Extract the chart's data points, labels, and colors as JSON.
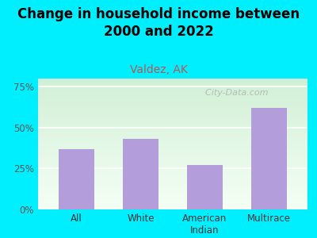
{
  "title": "Change in household income between\n2000 and 2022",
  "subtitle": "Valdez, AK",
  "categories": [
    "All",
    "White",
    "American\nIndian",
    "Multirace"
  ],
  "values": [
    37,
    43,
    27,
    62
  ],
  "bar_color": "#b39ddb",
  "yticks": [
    0,
    25,
    50,
    75
  ],
  "ytick_labels": [
    "0%",
    "25%",
    "50%",
    "75%"
  ],
  "ylim": [
    0,
    80
  ],
  "background_outer": "#00efff",
  "title_fontsize": 12,
  "title_fontweight": "bold",
  "subtitle_fontsize": 10,
  "subtitle_color": "#b05a5a",
  "watermark": "  City-Data.com",
  "watermark_fontsize": 8,
  "grid_color": "#dddddd",
  "tick_label_color": "#555555",
  "xlabel_color": "#333333"
}
